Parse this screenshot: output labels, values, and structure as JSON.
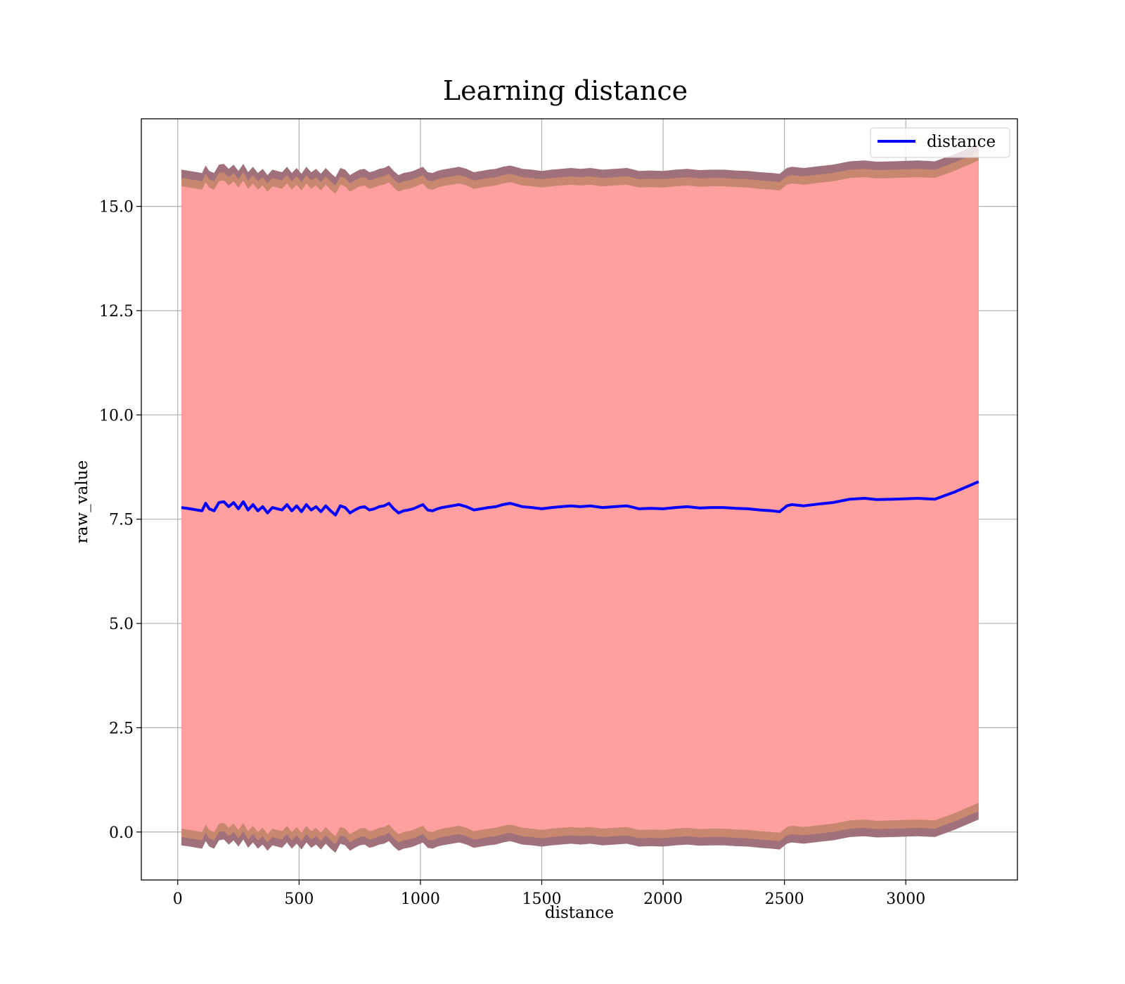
{
  "chart_data": {
    "type": "area",
    "title": "Learning distance",
    "xlabel": "distance",
    "ylabel": "raw_value",
    "xlim": [
      -150,
      3460
    ],
    "ylim": [
      -1.15,
      17.1
    ],
    "xticks": [
      0,
      500,
      1000,
      1500,
      2000,
      2500,
      3000
    ],
    "xtick_labels": [
      "0",
      "500",
      "1000",
      "1500",
      "2000",
      "2500",
      "3000"
    ],
    "yticks": [
      0.0,
      2.5,
      5.0,
      7.5,
      10.0,
      12.5,
      15.0
    ],
    "ytick_labels": [
      "0.0",
      "2.5",
      "5.0",
      "7.5",
      "10.0",
      "12.5",
      "15.0"
    ],
    "grid": true,
    "legend": {
      "position": "top-right",
      "entries": [
        "distance"
      ]
    },
    "colors": {
      "line": "#0000ff",
      "band_outer": "#ff9f9f",
      "band_mid": "#c8876f",
      "band_inner": "#a0717a"
    },
    "series": [
      {
        "name": "distance",
        "x": [
          15,
          50,
          80,
          100,
          115,
          130,
          150,
          170,
          190,
          210,
          230,
          250,
          270,
          290,
          310,
          330,
          350,
          370,
          390,
          410,
          430,
          450,
          470,
          490,
          510,
          530,
          550,
          570,
          590,
          610,
          630,
          650,
          670,
          690,
          710,
          730,
          750,
          770,
          790,
          810,
          830,
          850,
          870,
          890,
          910,
          930,
          950,
          970,
          990,
          1010,
          1030,
          1050,
          1070,
          1090,
          1110,
          1130,
          1160,
          1190,
          1220,
          1250,
          1280,
          1310,
          1340,
          1370,
          1390,
          1420,
          1460,
          1500,
          1540,
          1580,
          1620,
          1660,
          1700,
          1750,
          1800,
          1850,
          1880,
          1900,
          1950,
          2000,
          2050,
          2100,
          2150,
          2200,
          2250,
          2300,
          2350,
          2400,
          2450,
          2480,
          2510,
          2530,
          2580,
          2650,
          2700,
          2770,
          2830,
          2880,
          2950,
          3050,
          3120,
          3200,
          3300
        ],
        "y": [
          7.78,
          7.75,
          7.72,
          7.7,
          7.88,
          7.75,
          7.7,
          7.9,
          7.92,
          7.8,
          7.9,
          7.75,
          7.92,
          7.72,
          7.85,
          7.7,
          7.8,
          7.65,
          7.78,
          7.75,
          7.72,
          7.85,
          7.7,
          7.82,
          7.68,
          7.85,
          7.72,
          7.8,
          7.68,
          7.82,
          7.7,
          7.6,
          7.82,
          7.78,
          7.65,
          7.72,
          7.78,
          7.8,
          7.72,
          7.75,
          7.8,
          7.82,
          7.88,
          7.75,
          7.65,
          7.7,
          7.72,
          7.75,
          7.8,
          7.85,
          7.72,
          7.7,
          7.75,
          7.78,
          7.8,
          7.82,
          7.85,
          7.8,
          7.72,
          7.75,
          7.78,
          7.8,
          7.85,
          7.88,
          7.85,
          7.8,
          7.78,
          7.75,
          7.78,
          7.8,
          7.82,
          7.8,
          7.82,
          7.78,
          7.8,
          7.82,
          7.78,
          7.75,
          7.76,
          7.75,
          7.78,
          7.8,
          7.77,
          7.78,
          7.78,
          7.76,
          7.75,
          7.72,
          7.7,
          7.68,
          7.82,
          7.85,
          7.82,
          7.87,
          7.9,
          7.98,
          8.0,
          7.97,
          7.98,
          8.0,
          7.98,
          8.15,
          8.4
        ],
        "band": [
          7.7,
          7.9,
          8.1
        ]
      }
    ]
  }
}
